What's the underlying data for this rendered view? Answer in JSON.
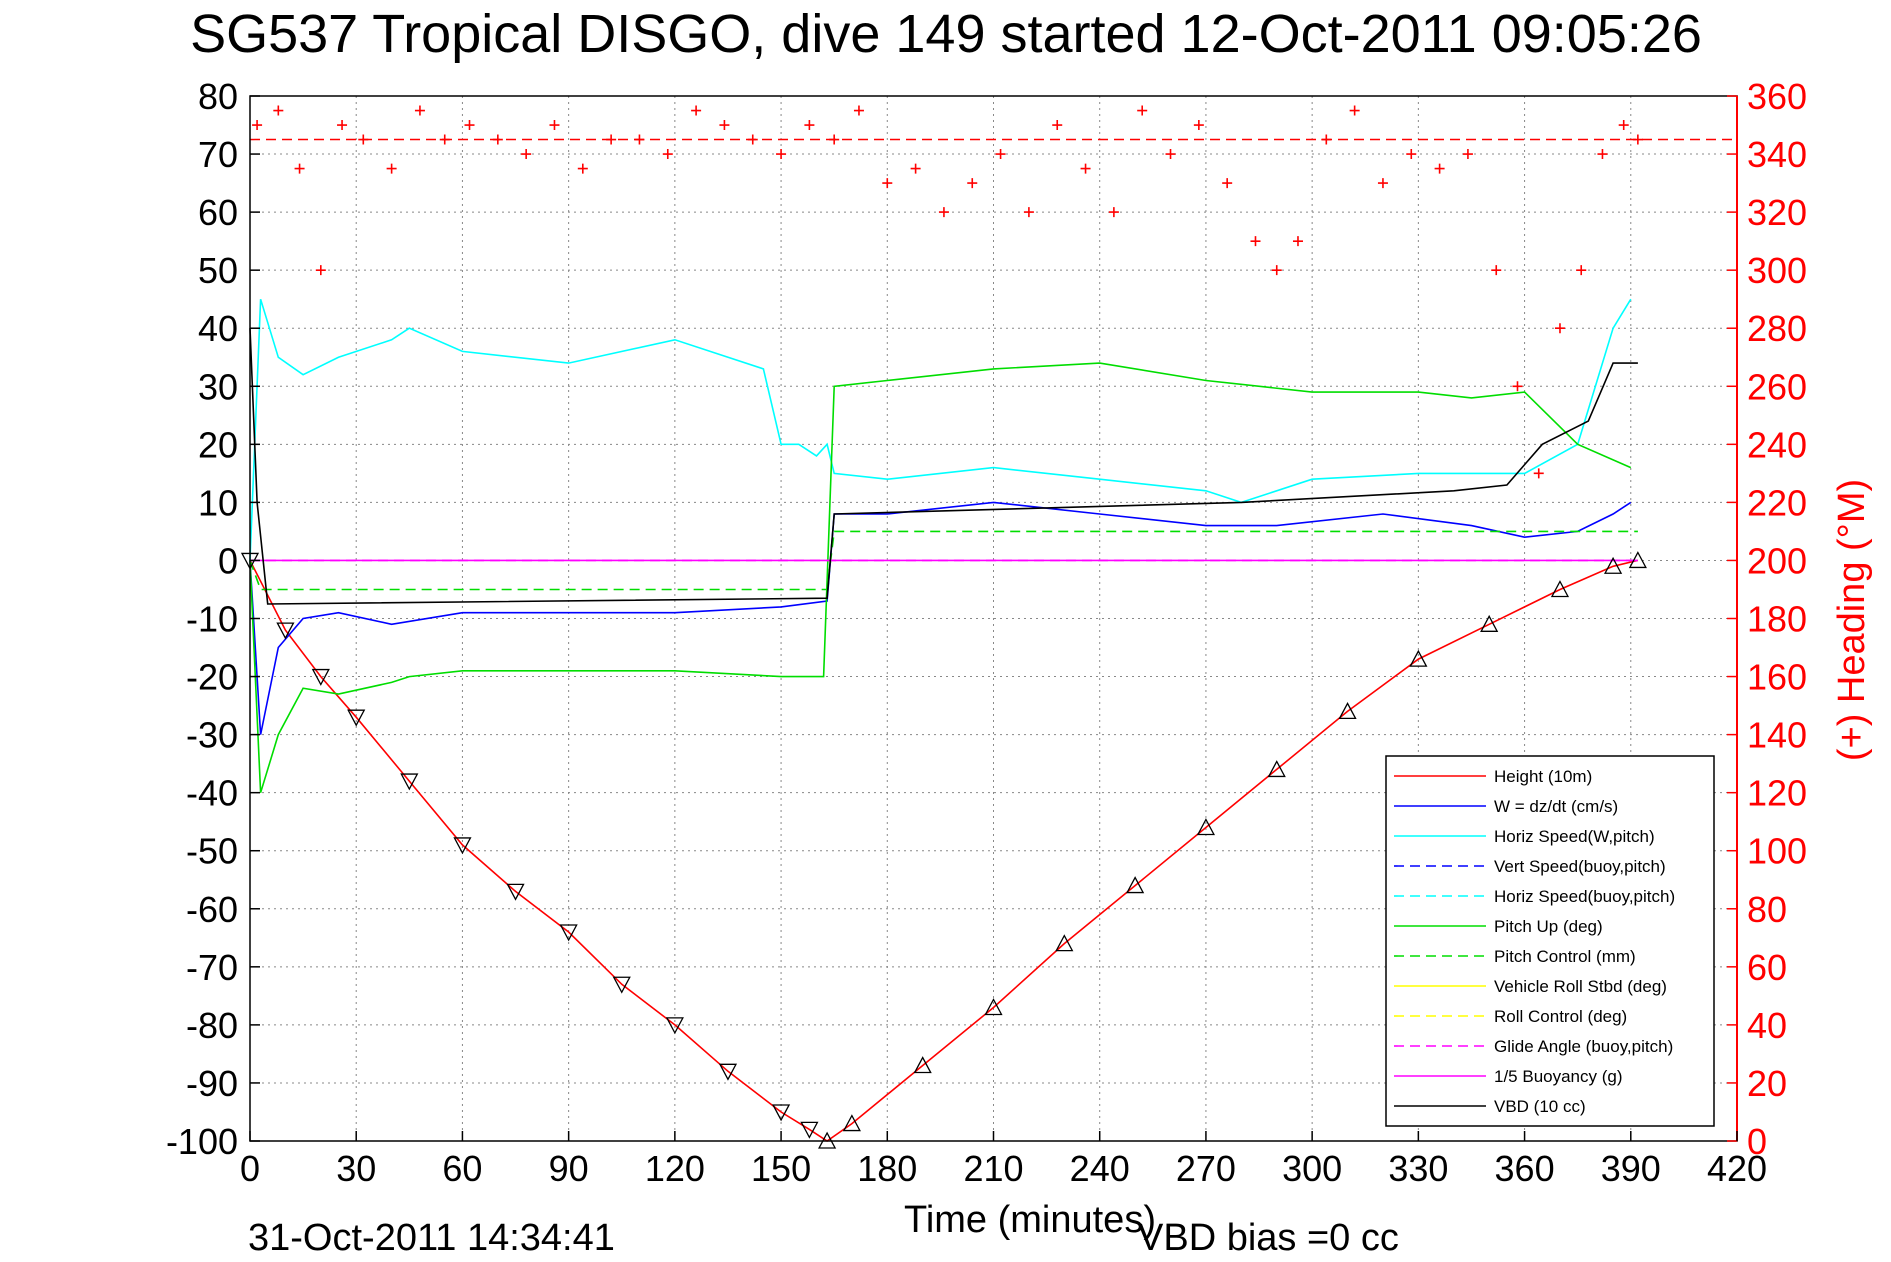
{
  "chart_data": {
    "type": "line",
    "title": "SG537 Tropical DISGO, dive 149 started 12-Oct-2011 09:05:26",
    "xlabel": "Time (minutes)",
    "ylabel": "",
    "y2label": "(+) Heading (°M)",
    "xlim": [
      0,
      420
    ],
    "ylim": [
      -100,
      80
    ],
    "y2lim": [
      0,
      360
    ],
    "xticks": [
      0,
      30,
      60,
      90,
      120,
      150,
      180,
      210,
      240,
      270,
      300,
      330,
      360,
      390,
      420
    ],
    "yticks": [
      80,
      70,
      60,
      50,
      40,
      30,
      20,
      10,
      0,
      -10,
      -20,
      -30,
      -40,
      -50,
      -60,
      -70,
      -80,
      -90,
      -100
    ],
    "y2ticks": [
      360,
      340,
      320,
      300,
      280,
      260,
      240,
      220,
      200,
      180,
      160,
      140,
      120,
      100,
      80,
      60,
      40,
      20,
      0
    ],
    "grid": true,
    "legend_position": "bottom-right",
    "footer_left": "31-Oct-2011 14:34:41",
    "footer_right": "VBD bias =0 cc",
    "heading_target": 345,
    "series": [
      {
        "name": "Height (10m)",
        "color": "#ff0000",
        "style": "solid",
        "x": [
          0,
          10,
          20,
          30,
          45,
          60,
          75,
          90,
          105,
          120,
          135,
          150,
          158,
          163,
          170,
          190,
          210,
          230,
          250,
          270,
          290,
          310,
          330,
          350,
          370,
          385,
          392
        ],
        "y": [
          0,
          -12,
          -20,
          -27,
          -38,
          -49,
          -57,
          -64,
          -73,
          -80,
          -88,
          -95,
          -98,
          -100,
          -97,
          -87,
          -77,
          -66,
          -56,
          -46,
          -36,
          -26,
          -17,
          -11,
          -5,
          -1,
          0
        ]
      },
      {
        "name": "W = dz/dt (cm/s)",
        "color": "#0000ff",
        "style": "solid",
        "x": [
          0,
          3,
          8,
          15,
          25,
          40,
          60,
          90,
          120,
          150,
          163,
          165,
          180,
          210,
          240,
          270,
          290,
          320,
          345,
          360,
          375,
          385,
          390
        ],
        "y": [
          0,
          -30,
          -15,
          -10,
          -9,
          -11,
          -9,
          -9,
          -9,
          -8,
          -7,
          8,
          8,
          10,
          8,
          6,
          6,
          8,
          6,
          4,
          5,
          8,
          10
        ]
      },
      {
        "name": "Horiz Speed(W,pitch)",
        "color": "#00ffff",
        "style": "solid",
        "x": [
          0,
          3,
          8,
          15,
          25,
          40,
          45,
          60,
          90,
          120,
          145,
          150,
          155,
          160,
          163,
          165,
          180,
          210,
          240,
          270,
          280,
          300,
          330,
          345,
          360,
          375,
          385,
          390
        ],
        "y": [
          0,
          45,
          35,
          32,
          35,
          38,
          40,
          36,
          34,
          38,
          33,
          20,
          20,
          18,
          20,
          15,
          14,
          16,
          14,
          12,
          10,
          14,
          15,
          15,
          15,
          20,
          40,
          45
        ]
      },
      {
        "name": "Vert Speed(buoy,pitch)",
        "color": "#0000ff",
        "style": "dashed",
        "x": [],
        "y": []
      },
      {
        "name": "Horiz Speed(buoy,pitch)",
        "color": "#00ffff",
        "style": "dashed",
        "x": [],
        "y": []
      },
      {
        "name": "Pitch Up (deg)",
        "color": "#00dd00",
        "style": "solid",
        "x": [
          0,
          3,
          8,
          15,
          25,
          40,
          45,
          60,
          90,
          120,
          150,
          162,
          165,
          180,
          210,
          240,
          270,
          300,
          330,
          345,
          360,
          375,
          390
        ],
        "y": [
          0,
          -40,
          -30,
          -22,
          -23,
          -21,
          -20,
          -19,
          -19,
          -19,
          -20,
          -20,
          30,
          31,
          33,
          34,
          31,
          29,
          29,
          28,
          29,
          20,
          16
        ]
      },
      {
        "name": "Pitch Control (mm)",
        "color": "#00dd00",
        "style": "dashed",
        "x": [
          0,
          3,
          163,
          165,
          392
        ],
        "y": [
          0,
          -5,
          -5,
          5,
          5
        ]
      },
      {
        "name": "Vehicle Roll Stbd (deg)",
        "color": "#ffff00",
        "style": "solid",
        "x": [],
        "y": []
      },
      {
        "name": "Roll Control (deg)",
        "color": "#ffff00",
        "style": "dashed",
        "x": [],
        "y": []
      },
      {
        "name": "Glide Angle (buoy,pitch)",
        "color": "#ff00ff",
        "style": "dashed",
        "x": [
          0,
          392
        ],
        "y": [
          0,
          0
        ]
      },
      {
        "name": "1/5 Buoyancy (g)",
        "color": "#ff00ff",
        "style": "solid",
        "x": [
          0,
          392
        ],
        "y": [
          0,
          0
        ]
      },
      {
        "name": "VBD (10 cc)",
        "color": "#000000",
        "style": "solid",
        "x": [
          0,
          2,
          5,
          163,
          165,
          280,
          340,
          355,
          365,
          378,
          385,
          392
        ],
        "y": [
          40,
          10,
          -7.5,
          -6.5,
          8,
          10,
          12,
          13,
          20,
          24,
          34,
          34
        ]
      }
    ],
    "heading_series": {
      "name": "(+) Heading",
      "color": "#ff0000",
      "marker": "+",
      "x": [
        2,
        8,
        14,
        20,
        26,
        32,
        40,
        48,
        55,
        62,
        70,
        78,
        86,
        94,
        102,
        110,
        118,
        126,
        134,
        142,
        150,
        158,
        165,
        172,
        180,
        188,
        196,
        204,
        212,
        220,
        228,
        236,
        244,
        252,
        260,
        268,
        276,
        284,
        290,
        296,
        304,
        312,
        320,
        328,
        336,
        344,
        352,
        358,
        364,
        370,
        376,
        382,
        388,
        392
      ],
      "y": [
        350,
        355,
        335,
        300,
        350,
        345,
        335,
        355,
        345,
        350,
        345,
        340,
        350,
        335,
        345,
        345,
        340,
        355,
        350,
        345,
        340,
        350,
        345,
        355,
        330,
        335,
        320,
        330,
        340,
        320,
        350,
        335,
        320,
        355,
        340,
        350,
        330,
        310,
        300,
        310,
        345,
        355,
        330,
        340,
        335,
        340,
        300,
        260,
        230,
        280,
        300,
        340,
        350,
        345
      ]
    },
    "depth_markers": {
      "desc_marker": "triangle-down",
      "asc_marker": "triangle-up"
    }
  },
  "legend": [
    {
      "label": "Height (10m)",
      "color": "#ff0000",
      "dash": false
    },
    {
      "label": "W = dz/dt (cm/s)",
      "color": "#0000ff",
      "dash": false
    },
    {
      "label": "Horiz Speed(W,pitch)",
      "color": "#00ffff",
      "dash": false
    },
    {
      "label": "Vert Speed(buoy,pitch)",
      "color": "#0000ff",
      "dash": true
    },
    {
      "label": "Horiz Speed(buoy,pitch)",
      "color": "#00ffff",
      "dash": true
    },
    {
      "label": "Pitch Up (deg)",
      "color": "#00dd00",
      "dash": false
    },
    {
      "label": "Pitch Control (mm)",
      "color": "#00dd00",
      "dash": true
    },
    {
      "label": "Vehicle Roll Stbd (deg)",
      "color": "#ffff00",
      "dash": false
    },
    {
      "label": "Roll Control (deg)",
      "color": "#ffff00",
      "dash": true
    },
    {
      "label": "Glide Angle (buoy,pitch)",
      "color": "#ff00ff",
      "dash": true
    },
    {
      "label": "1/5 Buoyancy (g)",
      "color": "#ff00ff",
      "dash": false
    },
    {
      "label": "VBD (10 cc)",
      "color": "#000000",
      "dash": false
    }
  ]
}
